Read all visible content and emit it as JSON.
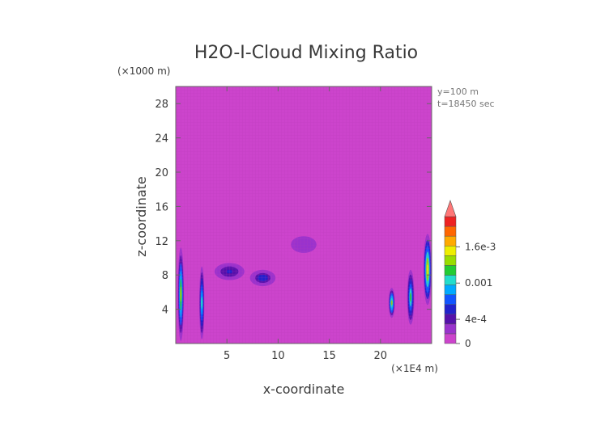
{
  "chart_data": {
    "type": "heatmap",
    "title": "H2O-I-Cloud Mixing Ratio",
    "xlabel": "x-coordinate",
    "ylabel": "z-coordinate",
    "x_units": "(×1E4 m)",
    "z_units": "(×1000 m)",
    "xlim": [
      0,
      25
    ],
    "ylim": [
      0,
      30
    ],
    "x_ticks": [
      5,
      10,
      15,
      20
    ],
    "y_ticks": [
      4,
      8,
      12,
      16,
      20,
      24,
      28
    ],
    "info": [
      "y=100 m",
      "t=18450 sec"
    ],
    "colorbar": {
      "tick_labels": [
        "1.6e-3",
        "0.001",
        "4e-4",
        "0"
      ],
      "tick_values": [
        0.0016,
        0.001,
        0.0004,
        0
      ],
      "max": 0.0021,
      "extend": "max",
      "colors": [
        "#cc44cc",
        "#9933cc",
        "#5511aa",
        "#2222cc",
        "#1155ff",
        "#00aaff",
        "#22ddcc",
        "#22cc33",
        "#99dd00",
        "#eeee00",
        "#ffaa00",
        "#ff6600",
        "#ee2222",
        "#ff7777"
      ]
    },
    "background_color": "#cc44cc",
    "cloud_regions": [
      {
        "x": [
          0.2,
          0.8
        ],
        "z": [
          0.3,
          11.2
        ],
        "peak": 0.0014
      },
      {
        "x": [
          2.3,
          2.8
        ],
        "z": [
          0.5,
          9.0
        ],
        "peak": 0.0011
      },
      {
        "x": [
          3.5,
          7.0
        ],
        "z": [
          7.2,
          9.6
        ],
        "peak": 0.0005
      },
      {
        "x": [
          7.0,
          10.0
        ],
        "z": [
          6.5,
          8.8
        ],
        "peak": 0.0006
      },
      {
        "x": [
          10.0,
          15.0
        ],
        "z": [
          9.6,
          13.5
        ],
        "peak": 0.0003
      },
      {
        "x": [
          20.8,
          21.4
        ],
        "z": [
          3.0,
          6.5
        ],
        "peak": 0.0013
      },
      {
        "x": [
          22.6,
          23.3
        ],
        "z": [
          2.2,
          8.6
        ],
        "peak": 0.0012
      },
      {
        "x": [
          24.2,
          25.0
        ],
        "z": [
          4.5,
          12.8
        ],
        "peak": 0.0016
      }
    ]
  }
}
